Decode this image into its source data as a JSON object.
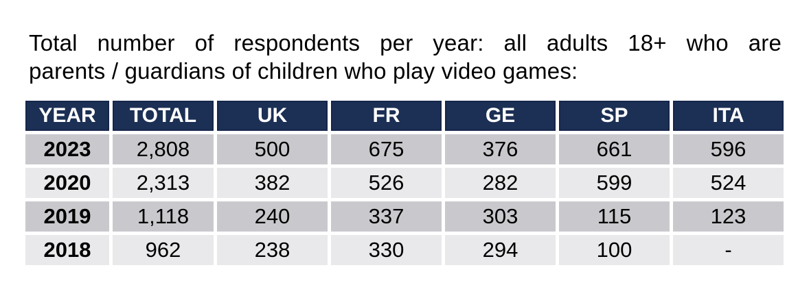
{
  "title": {
    "line1": "Total number of respondents per year: all adults 18+ who are",
    "line2": "parents / guardians of children who play video games:"
  },
  "table": {
    "columns": [
      "YEAR",
      "TOTAL",
      "UK",
      "FR",
      "GE",
      "SP",
      "ITA"
    ],
    "rows": [
      {
        "cells": [
          "2023",
          "2,808",
          "500",
          "675",
          "376",
          "661",
          "596"
        ]
      },
      {
        "cells": [
          "2020",
          "2,313",
          "382",
          "526",
          "282",
          "599",
          "524"
        ]
      },
      {
        "cells": [
          "2019",
          "1,118",
          "240",
          "337",
          "303",
          "115",
          "123"
        ]
      },
      {
        "cells": [
          "2018",
          "962",
          "238",
          "330",
          "294",
          "100",
          "-"
        ]
      }
    ]
  },
  "colors": {
    "header_bg": "#1c2f54",
    "header_border": "#16264a",
    "header_text": "#ffffff",
    "row_dark": "#c9c9cd",
    "row_light": "#e9e8ea",
    "body_text": "#000000",
    "background": "#ffffff"
  },
  "chart_data": {
    "type": "table",
    "title": "Total number of respondents per year: all adults 18+ who are parents / guardians of children who play video games:",
    "columns": [
      "YEAR",
      "TOTAL",
      "UK",
      "FR",
      "GE",
      "SP",
      "ITA"
    ],
    "rows": [
      [
        "2023",
        2808,
        500,
        675,
        376,
        661,
        596
      ],
      [
        "2020",
        2313,
        382,
        526,
        282,
        599,
        524
      ],
      [
        "2019",
        1118,
        240,
        337,
        303,
        115,
        123
      ],
      [
        "2018",
        962,
        238,
        330,
        294,
        100,
        null
      ]
    ],
    "notes": "Dash shown for ITA in 2018 (no data). Header row navy with white bold text; data rows alternate dark/light gray starting dark at 2023; YEAR column values bold."
  }
}
